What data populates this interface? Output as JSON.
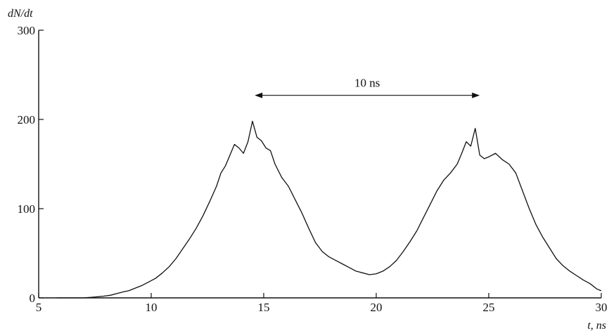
{
  "chart_data": {
    "type": "line",
    "ylabel": "dN/dt",
    "xlabel": "t, ns",
    "xlim": [
      5,
      30
    ],
    "ylim": [
      0,
      300
    ],
    "x_ticks": [
      5,
      10,
      15,
      20,
      25,
      30
    ],
    "y_ticks": [
      0,
      100,
      200,
      300
    ],
    "grid": false,
    "legend": "none",
    "series": [
      {
        "color": "#111111",
        "x": [
          5.8,
          6.5,
          7.0,
          7.5,
          7.9,
          8.2,
          8.5,
          8.8,
          9.0,
          9.3,
          9.6,
          9.9,
          10.2,
          10.5,
          10.8,
          11.1,
          11.4,
          11.7,
          12.0,
          12.3,
          12.6,
          12.9,
          13.1,
          13.3,
          13.5,
          13.7,
          13.9,
          14.1,
          14.3,
          14.5,
          14.7,
          14.9,
          15.1,
          15.3,
          15.5,
          15.8,
          16.1,
          16.4,
          16.7,
          17.0,
          17.3,
          17.6,
          17.9,
          18.2,
          18.5,
          18.8,
          19.1,
          19.4,
          19.7,
          20.0,
          20.3,
          20.6,
          20.9,
          21.2,
          21.5,
          21.8,
          22.1,
          22.4,
          22.7,
          23.0,
          23.3,
          23.6,
          23.8,
          24.0,
          24.2,
          24.4,
          24.6,
          24.8,
          25.0,
          25.3,
          25.6,
          25.9,
          26.2,
          26.5,
          26.8,
          27.1,
          27.4,
          27.7,
          28.0,
          28.3,
          28.6,
          28.9,
          29.2,
          29.5,
          29.8,
          30.0
        ],
        "y": [
          0,
          0,
          0,
          1,
          2,
          3,
          5,
          7,
          8,
          11,
          14,
          18,
          22,
          28,
          35,
          44,
          55,
          66,
          78,
          92,
          108,
          125,
          140,
          148,
          160,
          172,
          168,
          162,
          175,
          198,
          180,
          176,
          168,
          165,
          150,
          135,
          125,
          110,
          95,
          78,
          62,
          52,
          46,
          42,
          38,
          34,
          30,
          28,
          26,
          27,
          30,
          35,
          42,
          52,
          63,
          75,
          90,
          105,
          120,
          132,
          140,
          150,
          162,
          175,
          170,
          190,
          160,
          156,
          158,
          162,
          155,
          150,
          140,
          120,
          100,
          82,
          68,
          56,
          44,
          36,
          30,
          25,
          20,
          16,
          10,
          8
        ]
      }
    ],
    "annotations": [
      {
        "text": "10 ns",
        "type": "double-arrow",
        "x_from": 14.6,
        "x_to": 24.6,
        "y": 227
      }
    ]
  }
}
